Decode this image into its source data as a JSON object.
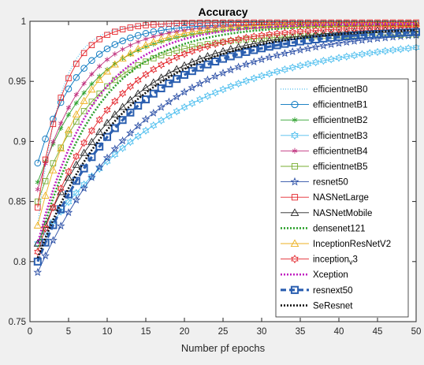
{
  "chart_data": {
    "type": "line",
    "title": "Accuracy",
    "xlabel": "Number pf epochs",
    "ylabel": "",
    "xlim": [
      0,
      50
    ],
    "ylim": [
      0.75,
      1.0
    ],
    "xticks": [
      "0",
      "5",
      "10",
      "15",
      "20",
      "25",
      "30",
      "35",
      "40",
      "45",
      "50"
    ],
    "yticks": [
      "0.75",
      "0.8",
      "0.85",
      "0.9",
      "0.95",
      "1"
    ],
    "grid": false,
    "legend_position": "right",
    "series": [
      {
        "name": "efficientnetB0",
        "color": "#4dbeee",
        "dash": "1,2",
        "width": 1.2,
        "marker": "none",
        "y1": 0.83,
        "yEnd": 0.998,
        "k": 0.35
      },
      {
        "name": "efficientnetB1",
        "color": "#0072bd",
        "dash": "",
        "width": 0.9,
        "marker": "circle",
        "y1": 0.882,
        "yEnd": 0.998,
        "k": 0.19
      },
      {
        "name": "efficientnetB2",
        "color": "#2ca02c",
        "dash": "",
        "width": 0.9,
        "marker": "asterisk",
        "y1": 0.866,
        "yEnd": 0.997,
        "k": 0.14
      },
      {
        "name": "efficientnetB3",
        "color": "#4dbeee",
        "dash": "",
        "width": 0.9,
        "marker": "hexagram",
        "y1": 0.815,
        "yEnd": 0.99,
        "k": 0.055
      },
      {
        "name": "efficientnetB4",
        "color": "#c0307d",
        "dash": "",
        "width": 0.9,
        "marker": "asterisk",
        "y1": 0.86,
        "yEnd": 0.998,
        "k": 0.17
      },
      {
        "name": "efficientnetB5",
        "color": "#77ac30",
        "dash": "",
        "width": 0.9,
        "marker": "square",
        "y1": 0.85,
        "yEnd": 0.989,
        "k": 0.13
      },
      {
        "name": "resnet50",
        "color": "#2b4fa6",
        "dash": "",
        "width": 0.9,
        "marker": "pentagram",
        "y1": 0.791,
        "yEnd": 0.995,
        "k": 0.07
      },
      {
        "name": "NASNetLarge",
        "color": "#e3262c",
        "dash": "",
        "width": 0.9,
        "marker": "square",
        "y1": 0.845,
        "yEnd": 0.999,
        "k": 0.3
      },
      {
        "name": "NASNetMobile",
        "color": "#222222",
        "dash": "",
        "width": 0.9,
        "marker": "triangle",
        "y1": 0.815,
        "yEnd": 0.996,
        "k": 0.09
      },
      {
        "name": "densenet121",
        "color": "#2ca02c",
        "dash": "2,2",
        "width": 2.6,
        "marker": "none",
        "y1": 0.81,
        "yEnd": 0.997,
        "k": 0.13
      },
      {
        "name": "InceptionResNetV2",
        "color": "#edb120",
        "dash": "",
        "width": 0.9,
        "marker": "triangle",
        "y1": 0.83,
        "yEnd": 0.998,
        "k": 0.16
      },
      {
        "name": "inception_v3",
        "color": "#e3262c",
        "dash": "",
        "width": 0.9,
        "marker": "hexagram",
        "y1": 0.808,
        "yEnd": 0.996,
        "k": 0.11
      },
      {
        "name": "Xception",
        "color": "#c020c0",
        "dash": "2,2",
        "width": 2.6,
        "marker": "none",
        "y1": 0.815,
        "yEnd": 0.998,
        "k": 0.14
      },
      {
        "name": "resnext50",
        "color": "#2b5fb0",
        "dash": "7,4",
        "width": 3.2,
        "marker": "square-dot",
        "y1": 0.8,
        "yEnd": 0.994,
        "k": 0.085
      },
      {
        "name": "SeResnet",
        "color": "#111111",
        "dash": "2,2",
        "width": 2.6,
        "marker": "none",
        "y1": 0.803,
        "yEnd": 0.995,
        "k": 0.09
      }
    ]
  }
}
